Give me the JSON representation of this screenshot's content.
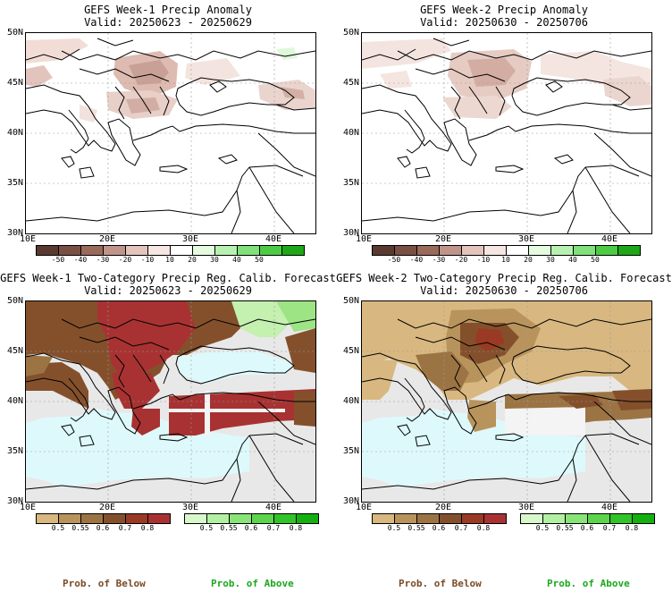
{
  "panels": [
    {
      "title": "GEFS Week-1 Precip Anomaly",
      "valid": "Valid: 20250623 - 20250629"
    },
    {
      "title": "GEFS Week-2 Precip Anomaly",
      "valid": "Valid: 20250630 - 20250706"
    },
    {
      "title": "GEFS Week-1 Two-Category Precip Reg. Calib. Forecast",
      "valid": "Valid: 20250623 - 20250629"
    },
    {
      "title": "GEFS Week-2 Two-Category Precip Reg. Calib. Forecast",
      "valid": "Valid: 20250630 - 20250706"
    }
  ],
  "axes": {
    "lat_labels": [
      "50N",
      "45N",
      "40N",
      "35N",
      "30N"
    ],
    "lon_labels": [
      "10E",
      "20E",
      "30E",
      "40E"
    ]
  },
  "anomaly_colorbar": {
    "ticks": [
      "-50",
      "-40",
      "-30",
      "-20",
      "-10",
      "10",
      "20",
      "30",
      "40",
      "50"
    ],
    "colors": [
      "#5a3a30",
      "#7a5044",
      "#9a6a5a",
      "#c0948a",
      "#e2c4bc",
      "#f5e6e2",
      "#ffffff",
      "#e4fbe0",
      "#b8f0b0",
      "#80e07a",
      "#4ccc44",
      "#1ea818"
    ]
  },
  "prob_colorbar_below": {
    "ticks": [
      "0.5",
      "0.55",
      "0.6",
      "0.7",
      "0.8"
    ],
    "colors": [
      "#d8b880",
      "#b8945c",
      "#9c7444",
      "#84502c",
      "#9a3a24",
      "#a83232"
    ]
  },
  "prob_colorbar_above": {
    "ticks": [
      "0.5",
      "0.55",
      "0.6",
      "0.7",
      "0.8"
    ],
    "colors": [
      "#d8f8cc",
      "#b4f0a4",
      "#88e478",
      "#5cd44c",
      "#30c428",
      "#14b010"
    ]
  },
  "category_labels": {
    "below": "Prob. of Below",
    "above": "Prob. of Above",
    "below_color": "#7a4a24",
    "above_color": "#1aa81a"
  }
}
